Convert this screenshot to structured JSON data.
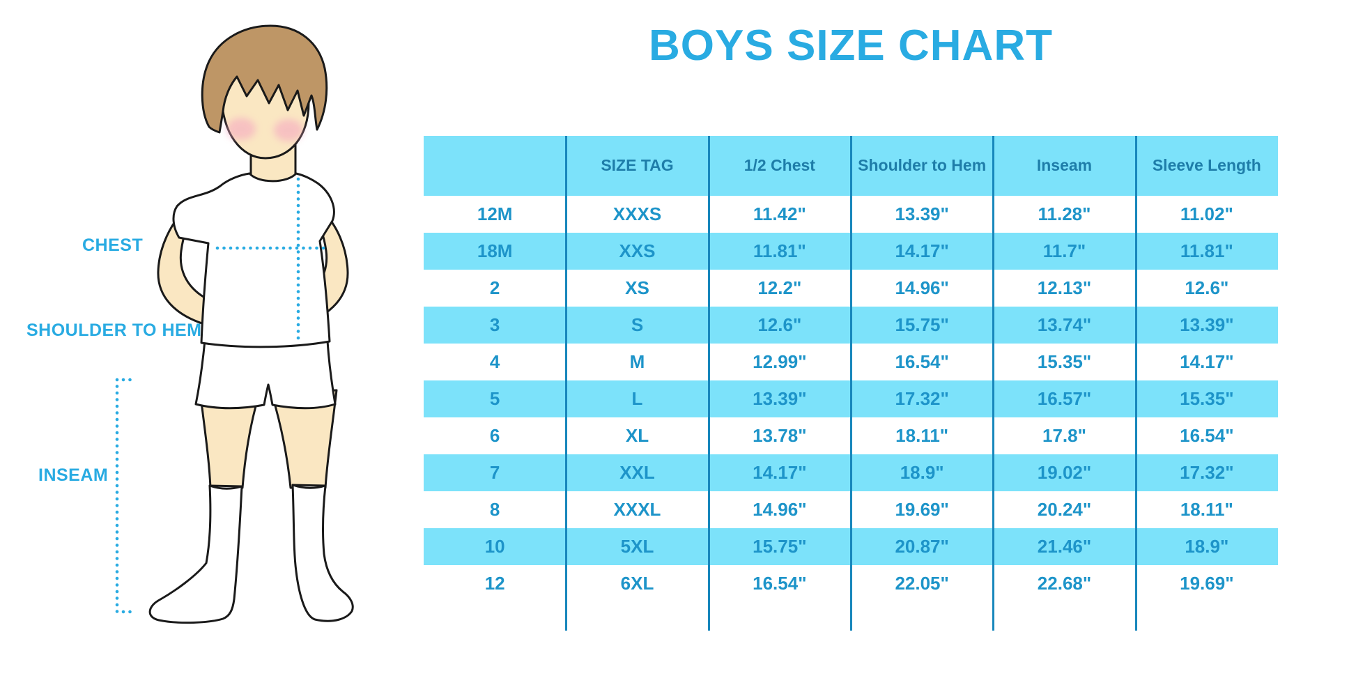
{
  "chart_data": {
    "type": "table",
    "title": "BOYS SIZE CHART",
    "columns": [
      "",
      "SIZE TAG",
      "1/2 Chest",
      "Shoulder to Hem",
      "Inseam",
      "Sleeve Length"
    ],
    "rows": [
      [
        "12M",
        "XXXS",
        "11.42\"",
        "13.39\"",
        "11.28\"",
        "11.02\""
      ],
      [
        "18M",
        "XXS",
        "11.81\"",
        "14.17\"",
        "11.7\"",
        "11.81\""
      ],
      [
        "2",
        "XS",
        "12.2\"",
        "14.96\"",
        "12.13\"",
        "12.6\""
      ],
      [
        "3",
        "S",
        "12.6\"",
        "15.75\"",
        "13.74\"",
        "13.39\""
      ],
      [
        "4",
        "M",
        "12.99\"",
        "16.54\"",
        "15.35\"",
        "14.17\""
      ],
      [
        "5",
        "L",
        "13.39\"",
        "17.32\"",
        "16.57\"",
        "15.35\""
      ],
      [
        "6",
        "XL",
        "13.78\"",
        "18.11\"",
        "17.8\"",
        "16.54\""
      ],
      [
        "7",
        "XXL",
        "14.17\"",
        "18.9\"",
        "19.02\"",
        "17.32\""
      ],
      [
        "8",
        "XXXL",
        "14.96\"",
        "19.69\"",
        "20.24\"",
        "18.11\""
      ],
      [
        "10",
        "5XL",
        "15.75\"",
        "20.87\"",
        "21.46\"",
        "18.9\""
      ],
      [
        "12",
        "6XL",
        "16.54\"",
        "22.05\"",
        "22.68\"",
        "19.69\""
      ]
    ],
    "layout_hints": {
      "striped_rows": "alternating white and light blue, header filled",
      "grid": "vertical column separators only"
    }
  },
  "figure": {
    "labels": {
      "chest": "CHEST",
      "shoulder_to_hem": "SHOULDER TO HEM",
      "inseam": "INSEAM"
    }
  },
  "colors": {
    "accent": "#29ABE2",
    "table_fill": "#7CE2FA",
    "grid_line": "#1887BC",
    "header_text": "#1E7DA9",
    "cell_text": "#1D94C9",
    "skin": "#FAE7C2",
    "hair": "#BE9666",
    "blush": "#F5A9C1",
    "outline": "#1A1A1A"
  }
}
